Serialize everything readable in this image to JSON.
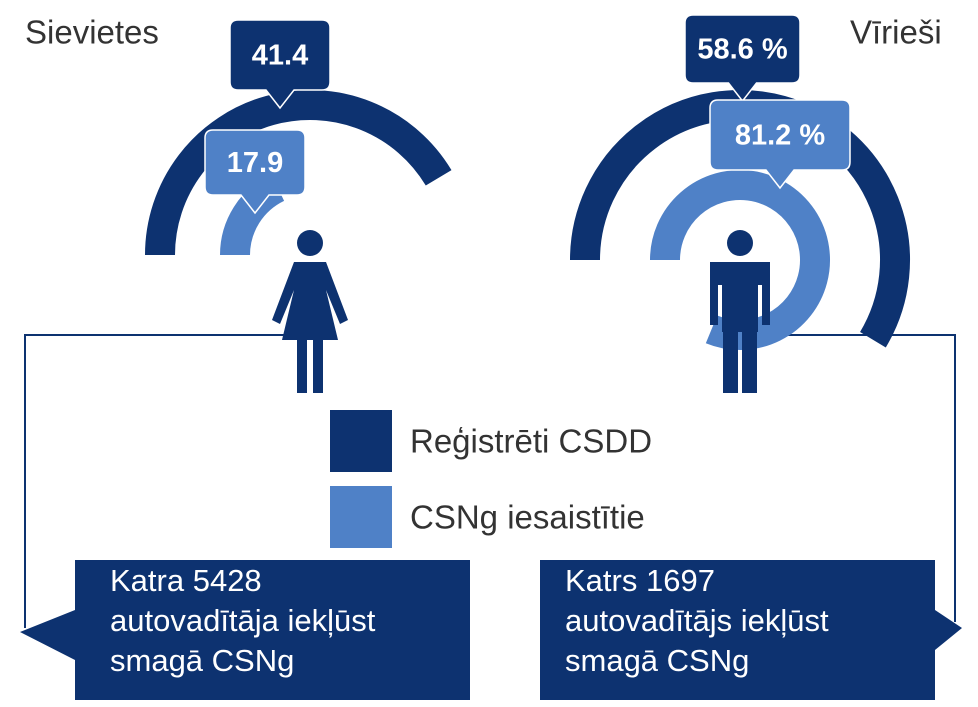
{
  "chart_data": {
    "type": "radial",
    "categories": [
      "Sievietes",
      "Vīrieši"
    ],
    "ylim": [
      0,
      100
    ],
    "series": [
      {
        "name": "Reģistrēti CSDD",
        "color": "#0d3270",
        "values": [
          41.4,
          58.6
        ],
        "value_labels": [
          "41.4",
          "58.6 %"
        ]
      },
      {
        "name": "CSNg iesaistītie",
        "color": "#4f81c7",
        "values": [
          17.9,
          81.2
        ],
        "value_labels": [
          "17.9",
          "81.2 %"
        ]
      }
    ],
    "annotations": [
      [
        "Katra 5428",
        "autovadītāja iekļūst",
        "smagā CSNg"
      ],
      [
        "Katrs 1697",
        "autovadītājs iekļūst",
        "smagā CSNg"
      ]
    ]
  }
}
